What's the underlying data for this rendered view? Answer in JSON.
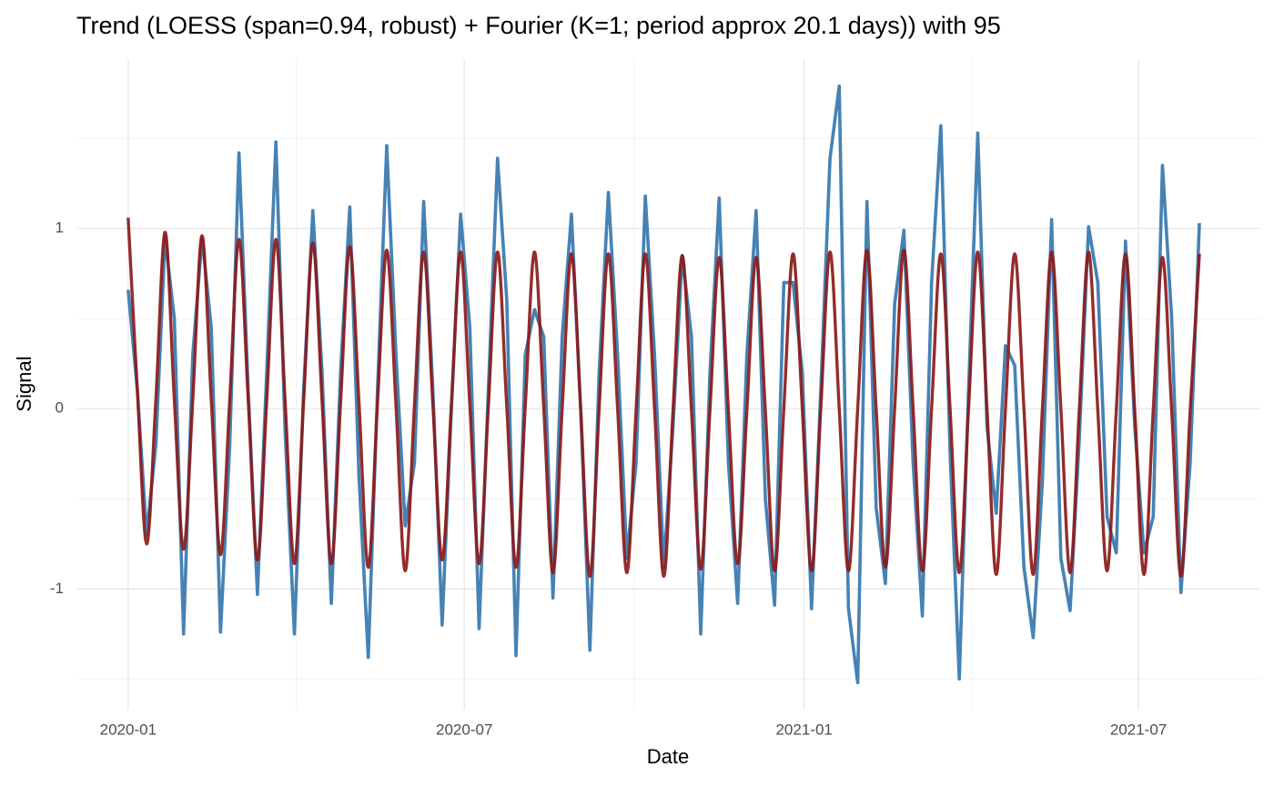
{
  "chart_data": {
    "type": "line",
    "title": "Trend (LOESS (span=0.94, robust) + Fourier (K=1; period approx 20.1 days)) with 95",
    "x_label": "Date",
    "y_label": "Signal",
    "x": [
      0,
      5,
      10,
      15,
      20,
      25,
      30,
      35,
      40,
      45,
      50,
      55,
      60,
      65,
      70,
      75,
      80,
      85,
      90,
      95,
      100,
      105,
      110,
      115,
      120,
      125,
      130,
      135,
      140,
      145,
      150,
      155,
      160,
      165,
      170,
      175,
      180,
      185,
      190,
      195,
      200,
      205,
      210,
      215,
      220,
      225,
      230,
      235,
      240,
      245,
      250,
      255,
      260,
      265,
      270,
      275,
      280,
      285,
      290,
      295,
      300,
      305,
      310,
      315,
      320,
      325,
      330,
      335,
      340,
      345,
      350,
      355,
      360,
      365,
      370,
      375,
      380,
      385,
      390,
      395,
      400,
      405,
      410,
      415,
      420,
      425,
      430,
      435,
      440,
      445,
      450,
      455,
      460,
      465,
      470,
      475,
      480,
      485,
      490,
      495,
      500,
      505,
      510,
      515,
      520,
      525,
      530,
      535,
      540,
      545,
      550,
      555,
      560,
      565,
      570,
      575,
      580
    ],
    "xlim": [
      -28,
      613
    ],
    "xticks": [
      {
        "value": 0,
        "label": "2020-01"
      },
      {
        "value": 182,
        "label": "2020-07"
      },
      {
        "value": 366,
        "label": "2021-01"
      },
      {
        "value": 547,
        "label": "2021-07"
      }
    ],
    "ylim": [
      -1.67,
      1.94
    ],
    "yticks": [
      -1,
      0,
      1
    ],
    "grid": true,
    "series": [
      {
        "color": "#4682b4",
        "smooth": false,
        "values": [
          0.66,
          0.1,
          -0.7,
          -0.2,
          0.95,
          0.5,
          -1.25,
          0.3,
          0.95,
          0.45,
          -1.24,
          -0.2,
          1.42,
          0.1,
          -1.03,
          0.2,
          1.48,
          -0.13,
          -1.25,
          0.1,
          1.1,
          0.2,
          -1.08,
          0.2,
          1.12,
          -0.38,
          -1.38,
          0.1,
          1.46,
          0.3,
          -0.65,
          -0.3,
          1.15,
          0.1,
          -1.2,
          0.0,
          1.08,
          0.45,
          -1.22,
          0.1,
          1.39,
          0.6,
          -1.37,
          0.3,
          0.55,
          0.4,
          -1.05,
          0.4,
          1.08,
          0.0,
          -1.34,
          0.2,
          1.2,
          0.3,
          -0.83,
          -0.3,
          1.18,
          0.3,
          -0.88,
          -0.1,
          0.85,
          0.4,
          -1.25,
          0.2,
          1.17,
          -0.3,
          -1.08,
          0.3,
          1.1,
          -0.5,
          -1.09,
          0.7,
          0.7,
          0.2,
          -1.11,
          0.1,
          1.39,
          1.79,
          -1.11,
          -1.52,
          1.15,
          -0.55,
          -0.97,
          0.58,
          0.99,
          -0.3,
          -1.15,
          0.7,
          1.57,
          -0.24,
          -1.5,
          0.1,
          1.53,
          -0.1,
          -0.58,
          0.35,
          0.24,
          -0.88,
          -1.27,
          -0.4,
          1.05,
          -0.83,
          -1.12,
          -0.16,
          1.01,
          0.7,
          -0.6,
          -0.8,
          0.93,
          -0.1,
          -0.8,
          -0.6,
          1.35,
          0.5,
          -1.02,
          -0.3,
          1.03
        ]
      },
      {
        "color": "#8b1a1a",
        "smooth": true,
        "values": [
          1.06,
          0.1,
          -0.75,
          0.05,
          0.98,
          0.05,
          -0.78,
          0.05,
          0.96,
          0.05,
          -0.81,
          0.05,
          0.94,
          0.05,
          -0.84,
          0.04,
          0.94,
          0.04,
          -0.86,
          0.04,
          0.92,
          0.04,
          -0.86,
          0.03,
          0.9,
          0.03,
          -0.88,
          0.03,
          0.88,
          0.02,
          -0.9,
          0.02,
          0.87,
          0.02,
          -0.84,
          0.02,
          0.87,
          0.02,
          -0.86,
          0.01,
          0.87,
          0.01,
          -0.88,
          0.01,
          0.87,
          0.01,
          -0.91,
          0.0,
          0.86,
          0.0,
          -0.93,
          0.0,
          0.86,
          0.0,
          -0.91,
          -0.01,
          0.86,
          0.0,
          -0.93,
          -0.01,
          0.85,
          -0.01,
          -0.89,
          -0.01,
          0.84,
          -0.01,
          -0.86,
          -0.01,
          0.84,
          -0.01,
          -0.9,
          0.0,
          0.86,
          0.0,
          -0.9,
          0.0,
          0.87,
          0.0,
          -0.9,
          0.0,
          0.88,
          0.0,
          -0.88,
          0.0,
          0.88,
          0.0,
          -0.9,
          0.0,
          0.86,
          0.0,
          -0.91,
          0.0,
          0.87,
          0.0,
          -0.92,
          0.0,
          0.86,
          0.0,
          -0.92,
          0.0,
          0.87,
          0.0,
          -0.91,
          0.0,
          0.87,
          -0.01,
          -0.9,
          -0.01,
          0.86,
          -0.01,
          -0.92,
          -0.01,
          0.84,
          -0.01,
          -0.93,
          -0.01,
          0.86
        ]
      }
    ]
  }
}
